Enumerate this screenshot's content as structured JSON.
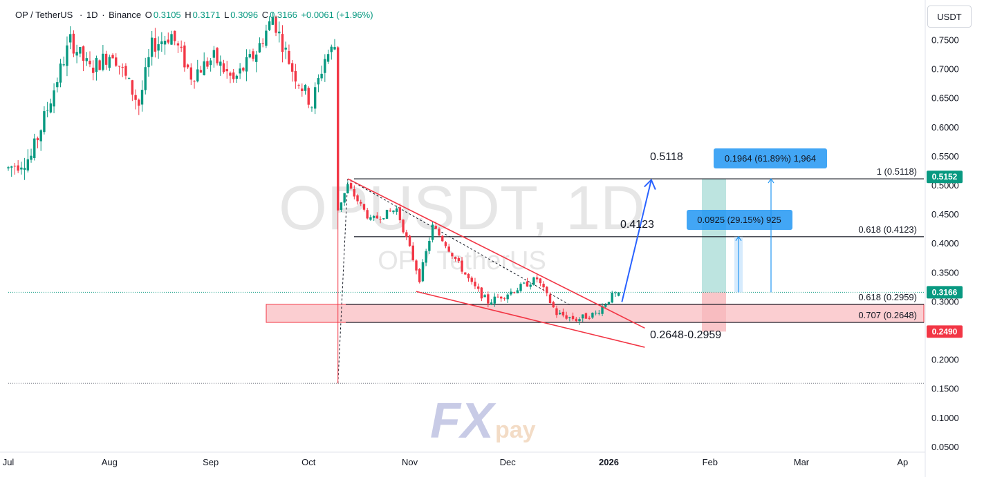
{
  "header": {
    "symbol": "OP / TetherUS",
    "sep1": "·",
    "interval": "1D",
    "sep2": "·",
    "exchange": "Binance",
    "o_label": "O",
    "o_value": "0.3105",
    "h_label": "H",
    "h_value": "0.3171",
    "l_label": "L",
    "l_value": "0.3096",
    "c_label": "C",
    "c_value": "0.3166",
    "change": "+0.0061 (+1.96%)"
  },
  "currency_button": "USDT",
  "watermark": {
    "line1": "OPUSDT, 1D",
    "line2": "OP / TetherUS"
  },
  "logo": {
    "part1": "FX",
    "part2": "pay"
  },
  "colors": {
    "up": "#089981",
    "down": "#f23645",
    "wedge": "#f23645",
    "arrow": "#2962ff",
    "zone": "#f7a6ab",
    "measure": "#2196f3",
    "target_green": "#b2dfdb",
    "stop_red": "#f7b8bc"
  },
  "annotations": {
    "target1": "0.5118",
    "target2": "0.4123",
    "support": "0.2648-0.2959",
    "measure1": "0.1964 (61.89%) 1,964",
    "measure2": "0.0925 (29.15%) 925"
  },
  "price_tags": [
    {
      "label": "0.5152",
      "value": 0.5152,
      "color": "#089981"
    },
    {
      "label": "0.3166",
      "value": 0.3166,
      "color": "#089981"
    },
    {
      "label": "0.2490",
      "value": 0.249,
      "color": "#f23645"
    }
  ],
  "fib_levels": [
    {
      "label": "1 (0.5118)",
      "value": 0.5118
    },
    {
      "label": "0.618 (0.4123)",
      "value": 0.4123
    },
    {
      "label": "0.618 (0.2959)",
      "value": 0.2959
    },
    {
      "label": "0.707 (0.2648)",
      "value": 0.2648
    }
  ],
  "chart_data": {
    "type": "candlestick",
    "title": "",
    "ylabel": "USDT",
    "xlabel": "",
    "ylim": [
      0.05,
      0.79
    ],
    "y_ticks": [
      "0.7500",
      "0.7000",
      "0.6500",
      "0.6000",
      "0.5500",
      "0.5000",
      "0.4500",
      "0.4000",
      "0.3500",
      "0.3000",
      "0.2500",
      "0.2000",
      "0.1500",
      "0.1000",
      "0.0500"
    ],
    "x_ticks": [
      {
        "label": "Jul",
        "date": "2025-07-01"
      },
      {
        "label": "Aug",
        "date": "2025-08-01"
      },
      {
        "label": "Sep",
        "date": "2025-09-01"
      },
      {
        "label": "Oct",
        "date": "2025-10-01"
      },
      {
        "label": "Nov",
        "date": "2025-11-01"
      },
      {
        "label": "Dec",
        "date": "2025-12-01"
      },
      {
        "label": "2026",
        "date": "2026-01-01"
      },
      {
        "label": "Feb",
        "date": "2026-02-01"
      },
      {
        "label": "Mar",
        "date": "2026-03-01"
      },
      {
        "label": "Ap",
        "date": "2026-04-01"
      }
    ],
    "price_segments": [
      {
        "date": "2025-07-01",
        "price": 0.53
      },
      {
        "date": "2025-07-08",
        "price": 0.55
      },
      {
        "date": "2025-07-14",
        "price": 0.65
      },
      {
        "date": "2025-07-20",
        "price": 0.75
      },
      {
        "date": "2025-07-26",
        "price": 0.7
      },
      {
        "date": "2025-08-02",
        "price": 0.73
      },
      {
        "date": "2025-08-10",
        "price": 0.64
      },
      {
        "date": "2025-08-14",
        "price": 0.74
      },
      {
        "date": "2025-08-20",
        "price": 0.76
      },
      {
        "date": "2025-08-26",
        "price": 0.69
      },
      {
        "date": "2025-09-02",
        "price": 0.72
      },
      {
        "date": "2025-09-08",
        "price": 0.68
      },
      {
        "date": "2025-09-15",
        "price": 0.73
      },
      {
        "date": "2025-09-20",
        "price": 0.79
      },
      {
        "date": "2025-09-26",
        "price": 0.7
      },
      {
        "date": "2025-10-02",
        "price": 0.64
      },
      {
        "date": "2025-10-06",
        "price": 0.72
      },
      {
        "date": "2025-10-09",
        "price": 0.74
      },
      {
        "date": "2025-10-10",
        "price": 0.46
      },
      {
        "date": "2025-10-13",
        "price": 0.5
      },
      {
        "date": "2025-10-20",
        "price": 0.44
      },
      {
        "date": "2025-10-28",
        "price": 0.46
      },
      {
        "date": "2025-11-04",
        "price": 0.34
      },
      {
        "date": "2025-11-08",
        "price": 0.43
      },
      {
        "date": "2025-11-12",
        "price": 0.4
      },
      {
        "date": "2025-11-20",
        "price": 0.33
      },
      {
        "date": "2025-11-25",
        "price": 0.3
      },
      {
        "date": "2025-12-03",
        "price": 0.32
      },
      {
        "date": "2025-12-10",
        "price": 0.34
      },
      {
        "date": "2025-12-16",
        "price": 0.28
      },
      {
        "date": "2025-12-22",
        "price": 0.27
      },
      {
        "date": "2025-12-28",
        "price": 0.28
      },
      {
        "date": "2026-01-02",
        "price": 0.3105
      },
      {
        "date": "2026-01-04",
        "price": 0.3166
      }
    ],
    "crash_wick": {
      "date": "2025-10-10",
      "high": 0.74,
      "low": 0.16
    },
    "last": {
      "open": 0.3105,
      "high": 0.3171,
      "low": 0.3096,
      "close": 0.3166
    },
    "wedge_upper": [
      {
        "date": "2025-10-13",
        "price": 0.5118
      },
      {
        "date": "2026-01-12",
        "price": 0.255
      }
    ],
    "wedge_lower": [
      {
        "date": "2025-11-03",
        "price": 0.318
      },
      {
        "date": "2026-01-12",
        "price": 0.222
      }
    ],
    "support_zone": {
      "from": 0.2648,
      "to": 0.2959
    },
    "projection_arrow": [
      {
        "date": "2026-01-05",
        "price": 0.3
      },
      {
        "date": "2026-01-14",
        "price": 0.51
      }
    ],
    "measure_targets": [
      {
        "value": 0.5118
      },
      {
        "value": 0.4123
      }
    ],
    "last_price_line": 0.3166,
    "low_line": 0.16
  }
}
